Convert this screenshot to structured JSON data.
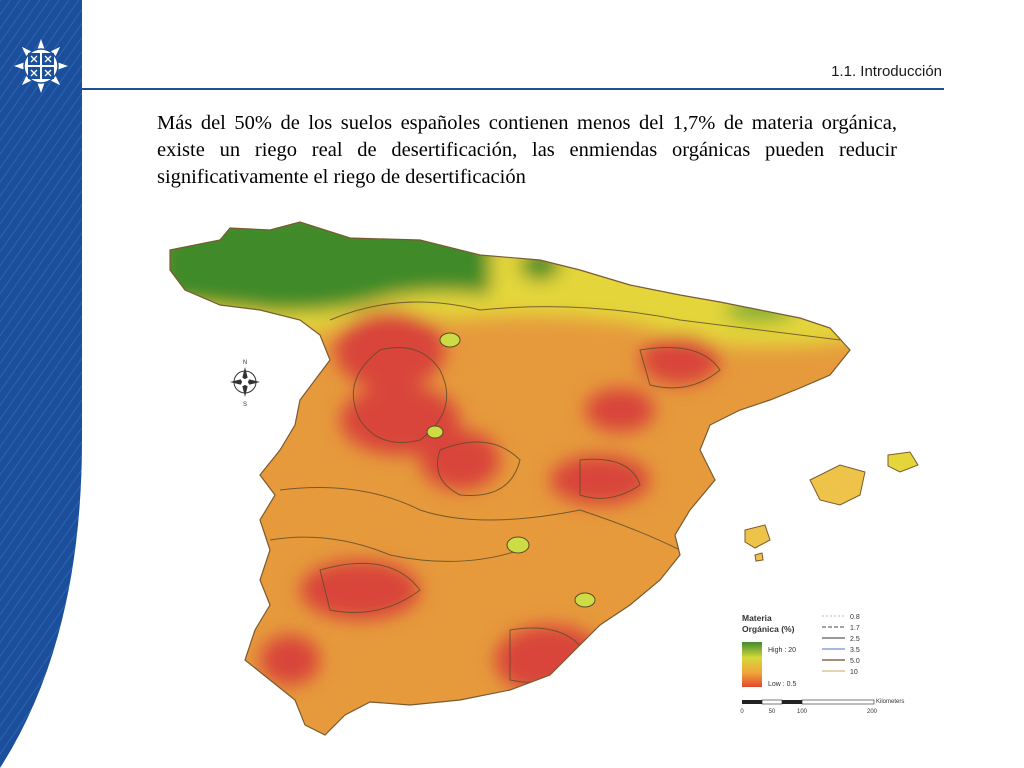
{
  "header": {
    "section_title": "1.1. Introducción"
  },
  "body": {
    "paragraph": "Más del 50% de los suelos españoles contienen menos del 1,7% de materia orgánica, existe un riego real de desertificación, las enmiendas orgánicas pueden reducir significativamente el riego de desertificación"
  },
  "map": {
    "compass": {
      "n": "N",
      "s": "S"
    },
    "legend": {
      "title_line1": "Materia",
      "title_line2": "Orgánica (%)",
      "high": "High : 20",
      "low": "Low : 0.5",
      "contours": [
        "0.8",
        "1.7",
        "2.5",
        "3.5",
        "5.0",
        "10"
      ],
      "scale_unit": "Kilometers",
      "scale_ticks": [
        "0",
        "50",
        "100",
        "200"
      ]
    }
  },
  "colors": {
    "band_blue": "#1b4f9c",
    "rule_blue": "#1f4e99",
    "high_green": "#3f8a2c",
    "mid_yellow": "#e4d53a",
    "mid_orange": "#e69a3c",
    "low_red": "#d9453a"
  }
}
